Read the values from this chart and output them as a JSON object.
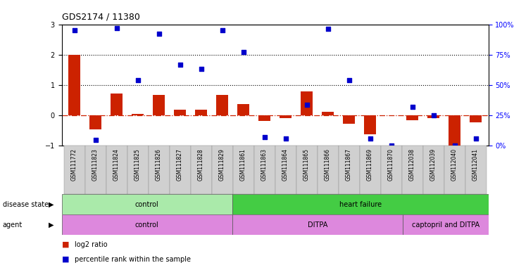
{
  "title": "GDS2174 / 11380",
  "samples": [
    "GSM111772",
    "GSM111823",
    "GSM111824",
    "GSM111825",
    "GSM111826",
    "GSM111827",
    "GSM111828",
    "GSM111829",
    "GSM111861",
    "GSM111863",
    "GSM111864",
    "GSM111865",
    "GSM111866",
    "GSM111867",
    "GSM111869",
    "GSM111870",
    "GSM112038",
    "GSM112039",
    "GSM112040",
    "GSM112041"
  ],
  "log2_ratio": [
    2.0,
    -0.45,
    0.72,
    0.05,
    0.68,
    0.18,
    0.18,
    0.68,
    0.38,
    -0.18,
    -0.1,
    0.78,
    0.12,
    -0.28,
    -0.62,
    0.0,
    -0.15,
    -0.1,
    -1.0,
    -0.22
  ],
  "pct_actual": [
    95,
    5,
    97,
    54,
    92,
    67,
    63,
    95,
    77,
    7,
    6,
    34,
    96,
    54,
    6,
    0,
    32,
    25,
    0,
    6
  ],
  "disease_state_data": [
    {
      "label": "control",
      "start": 0,
      "end": 8,
      "color": "#aaeaaa"
    },
    {
      "label": "heart failure",
      "start": 8,
      "end": 20,
      "color": "#44cc44"
    }
  ],
  "agent_data": [
    {
      "label": "control",
      "start": 0,
      "end": 8,
      "color": "#dd88dd"
    },
    {
      "label": "DITPA",
      "start": 8,
      "end": 16,
      "color": "#dd88dd"
    },
    {
      "label": "captopril and DITPA",
      "start": 16,
      "end": 20,
      "color": "#dd88dd"
    }
  ],
  "bar_color": "#cc2200",
  "dot_color": "#0000cc",
  "hline_color": "#cc2200",
  "ylim_left": [
    -1,
    3
  ],
  "ylim_right": [
    0,
    100
  ],
  "yticks_left": [
    -1,
    0,
    1,
    2,
    3
  ],
  "yticks_right": [
    0,
    25,
    50,
    75,
    100
  ],
  "bar_width": 0.55,
  "figsize": [
    7.3,
    3.84
  ],
  "dpi": 100
}
